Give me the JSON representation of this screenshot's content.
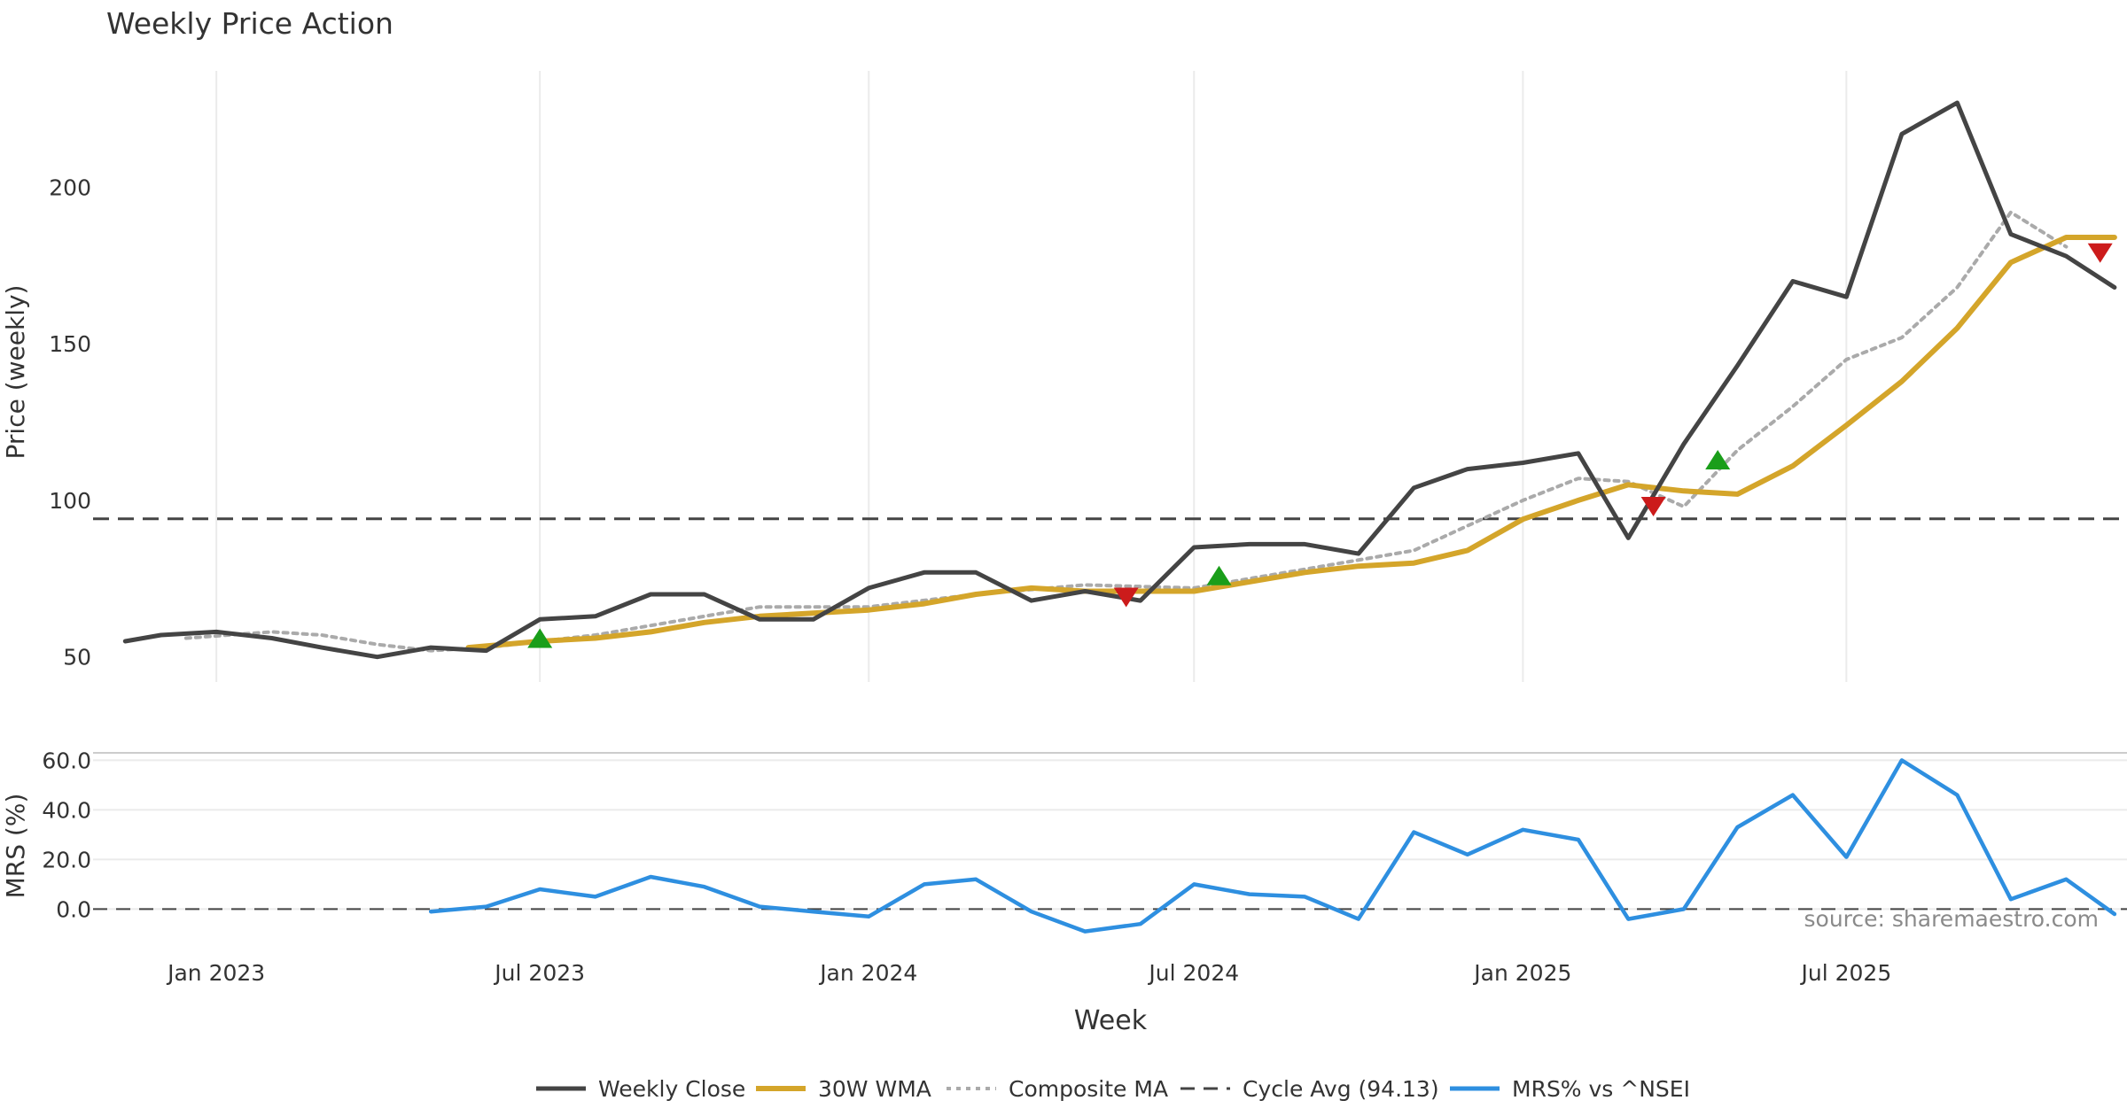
{
  "chart_data": {
    "type": "line",
    "title": "Weekly Price Action",
    "xlabel": "Week",
    "x_ticks": [
      "Jan 2023",
      "Jul 2023",
      "Jan 2024",
      "Jul 2024",
      "Jan 2025",
      "Jul 2025"
    ],
    "x_range": [
      "2022-10-24",
      "2025-12-05"
    ],
    "source": "source: sharemaestro.com",
    "grid": true,
    "legend_position": "bottom",
    "colors": {
      "close": "#444444",
      "wma": "#d4a52a",
      "composite": "#aaaaaa",
      "cycle": "#444444",
      "mrs": "#2e8fe0",
      "buy": "#1a9e1a",
      "sell": "#cc1b1b"
    },
    "legend": [
      {
        "key": "close",
        "label": "Weekly Close"
      },
      {
        "key": "wma",
        "label": "30W WMA"
      },
      {
        "key": "composite",
        "label": "Composite MA"
      },
      {
        "key": "cycle",
        "label": "Cycle Avg (94.13)"
      },
      {
        "key": "mrs",
        "label": "MRS% vs ^NSEI"
      }
    ],
    "price_panel": {
      "ylabel": "Price (weekly)",
      "ylim": [
        42,
        240
      ],
      "yticks": [
        50,
        100,
        150,
        200
      ],
      "cycle_avg": 94.13
    },
    "mrs_panel": {
      "ylabel": "MRS (%)",
      "ylim": [
        -12,
        63
      ],
      "yticks": [
        "0.0",
        "20.0",
        "40.0",
        "60.0"
      ],
      "zero_line": 0
    },
    "series": [
      {
        "name": "Weekly Close",
        "key": "close",
        "x": [
          "2022-11-11",
          "2022-12-01",
          "2023-01-01",
          "2023-02-01",
          "2023-03-01",
          "2023-04-01",
          "2023-05-01",
          "2023-06-01",
          "2023-07-01",
          "2023-08-01",
          "2023-09-01",
          "2023-10-01",
          "2023-11-01",
          "2023-12-01",
          "2024-01-01",
          "2024-02-01",
          "2024-03-01",
          "2024-04-01",
          "2024-05-01",
          "2024-06-01",
          "2024-07-01",
          "2024-08-01",
          "2024-09-01",
          "2024-10-01",
          "2024-11-01",
          "2024-12-01",
          "2025-01-01",
          "2025-02-01",
          "2025-03-01",
          "2025-04-01",
          "2025-05-01",
          "2025-06-01",
          "2025-07-01",
          "2025-08-01",
          "2025-09-01",
          "2025-10-01",
          "2025-11-01",
          "2025-11-28"
        ],
        "y": [
          55,
          57,
          58,
          56,
          53,
          50,
          53,
          52,
          62,
          63,
          70,
          70,
          62,
          62,
          72,
          77,
          77,
          68,
          71,
          68,
          85,
          86,
          86,
          83,
          104,
          110,
          112,
          115,
          88,
          118,
          143,
          170,
          165,
          217,
          227,
          185,
          178,
          168
        ]
      },
      {
        "name": "30W WMA",
        "key": "wma",
        "x": [
          "2023-05-22",
          "2023-07-01",
          "2023-08-01",
          "2023-09-01",
          "2023-10-01",
          "2023-11-01",
          "2023-12-01",
          "2024-01-01",
          "2024-02-01",
          "2024-03-01",
          "2024-04-01",
          "2024-05-01",
          "2024-06-01",
          "2024-07-01",
          "2024-08-01",
          "2024-09-01",
          "2024-10-01",
          "2024-11-01",
          "2024-12-01",
          "2025-01-01",
          "2025-02-01",
          "2025-03-01",
          "2025-04-01",
          "2025-05-01",
          "2025-06-01",
          "2025-07-01",
          "2025-08-01",
          "2025-09-01",
          "2025-10-01",
          "2025-11-01",
          "2025-11-28"
        ],
        "y": [
          53,
          55,
          56,
          58,
          61,
          63,
          64,
          65,
          67,
          70,
          72,
          71,
          71,
          71,
          74,
          77,
          79,
          80,
          84,
          94,
          100,
          105,
          103,
          102,
          111,
          124,
          138,
          155,
          176,
          184,
          184
        ]
      },
      {
        "name": "Composite MA",
        "key": "composite",
        "x": [
          "2022-12-15",
          "2023-02-01",
          "2023-03-01",
          "2023-04-01",
          "2023-05-01",
          "2023-06-01",
          "2023-08-01",
          "2023-10-01",
          "2023-11-01",
          "2024-01-01",
          "2024-03-01",
          "2024-05-01",
          "2024-07-01",
          "2024-09-01",
          "2024-11-01",
          "2025-01-01",
          "2025-02-01",
          "2025-03-01",
          "2025-04-01",
          "2025-05-01",
          "2025-06-01",
          "2025-07-01",
          "2025-08-01",
          "2025-09-01",
          "2025-10-01",
          "2025-11-01"
        ],
        "y": [
          56,
          58,
          57,
          54,
          52,
          53,
          57,
          63,
          66,
          66,
          70,
          73,
          72,
          78,
          84,
          100,
          107,
          106,
          98,
          116,
          130,
          145,
          152,
          168,
          192,
          181
        ]
      },
      {
        "name": "MRS% vs ^NSEI",
        "key": "mrs",
        "x": [
          "2023-05-01",
          "2023-06-01",
          "2023-07-01",
          "2023-08-01",
          "2023-09-01",
          "2023-10-01",
          "2023-11-01",
          "2023-12-01",
          "2024-01-01",
          "2024-02-01",
          "2024-03-01",
          "2024-04-01",
          "2024-05-01",
          "2024-06-01",
          "2024-07-01",
          "2024-08-01",
          "2024-09-01",
          "2024-10-01",
          "2024-11-01",
          "2024-12-01",
          "2025-01-01",
          "2025-02-01",
          "2025-03-01",
          "2025-04-01",
          "2025-05-01",
          "2025-06-01",
          "2025-07-01",
          "2025-08-01",
          "2025-09-01",
          "2025-10-01",
          "2025-11-01",
          "2025-11-28"
        ],
        "y": [
          -1,
          1,
          8,
          5,
          13,
          9,
          1,
          -1,
          -3,
          10,
          12,
          -1,
          -9,
          -6,
          10,
          6,
          5,
          -4,
          31,
          22,
          32,
          28,
          -4,
          0,
          33,
          46,
          21,
          60,
          46,
          4,
          12,
          -2
        ]
      }
    ],
    "signals": [
      {
        "type": "buy",
        "x": "2023-07-01",
        "y": 56
      },
      {
        "type": "sell",
        "x": "2024-05-24",
        "y": 69
      },
      {
        "type": "buy",
        "x": "2024-07-15",
        "y": 76
      },
      {
        "type": "sell",
        "x": "2025-03-15",
        "y": 98
      },
      {
        "type": "buy",
        "x": "2025-04-20",
        "y": 113
      },
      {
        "type": "sell",
        "x": "2025-11-20",
        "y": 179
      }
    ]
  }
}
